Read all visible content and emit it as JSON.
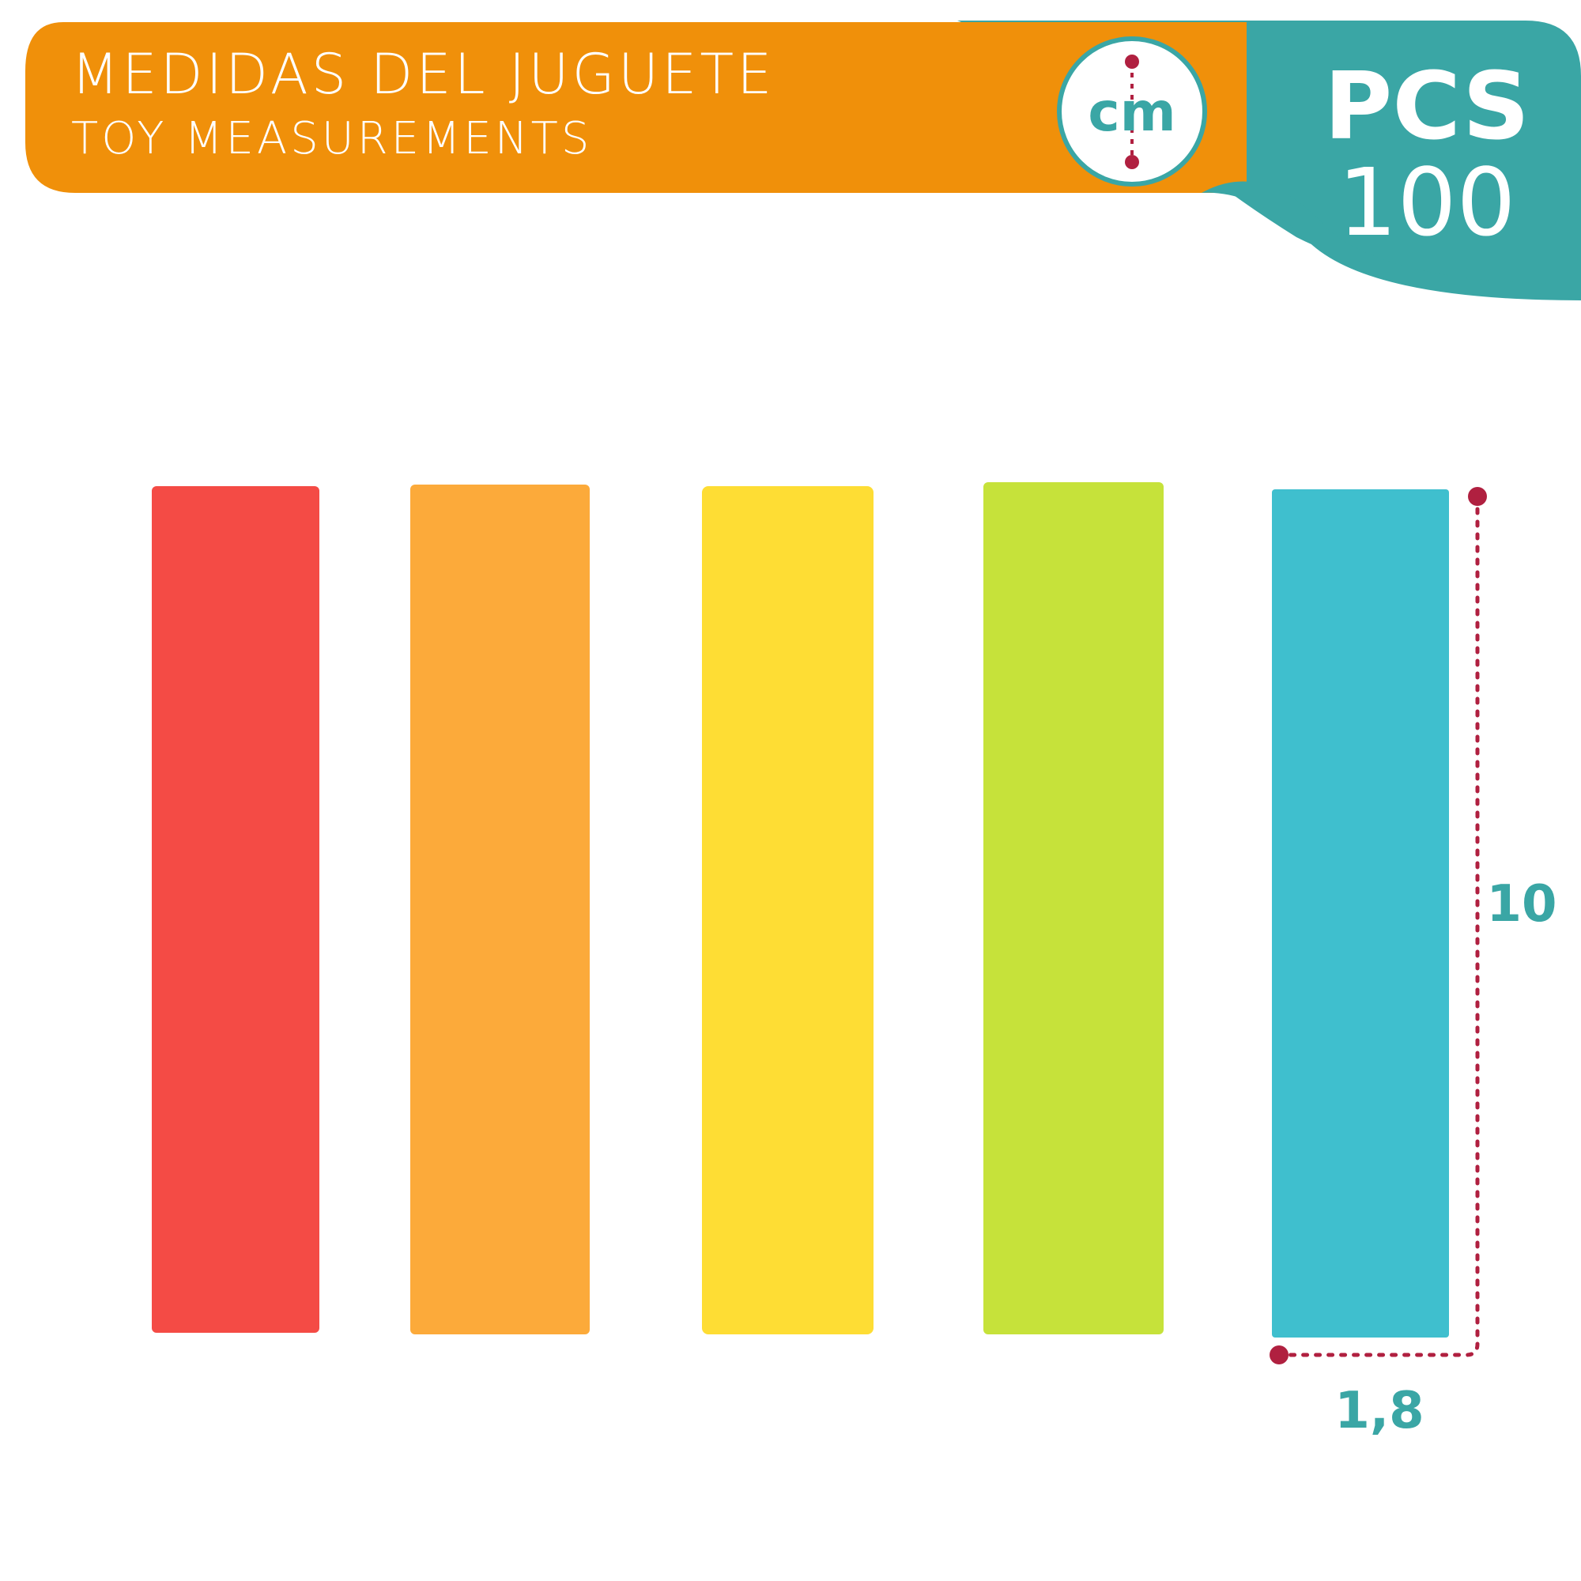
{
  "header": {
    "title": "MEDIDAS DEL JUGUETE",
    "subtitle": "TOY MEASUREMENTS"
  },
  "badge": {
    "unit": "cm",
    "pcs_label": "PCS",
    "pcs_value": "100"
  },
  "measurements": {
    "height": "10",
    "width": "1,8"
  }
}
